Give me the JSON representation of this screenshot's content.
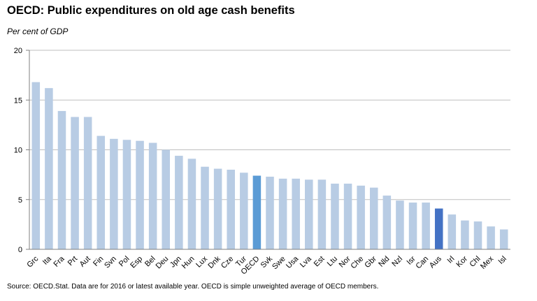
{
  "title": "OECD: Public expenditures on old age cash benefits",
  "subtitle": "Per cent of GDP",
  "source": "Source: OECD.Stat.  Data are for 2016 or latest available year.  OECD is simple unweighted average of OECD members.",
  "colors": {
    "bar": "#b8cce4",
    "oecd": "#5b9bd5",
    "aus": "#4472c4",
    "grid": "#bfbfbf",
    "axis": "#808080"
  },
  "chart_data": {
    "type": "bar",
    "title": "OECD: Public expenditures on old age cash benefits",
    "ylabel": "Per cent of GDP",
    "ylim": [
      0,
      20
    ],
    "yticks": [
      0,
      5,
      10,
      15,
      20
    ],
    "grid": true,
    "highlight": {
      "OECD": "oecd",
      "Aus": "aus"
    },
    "categories": [
      "Grc",
      "Ita",
      "Fra",
      "Prt",
      "Aut",
      "Fin",
      "Svn",
      "Pol",
      "Esp",
      "Bel",
      "Deu",
      "Jpn",
      "Hun",
      "Lux",
      "Dnk",
      "Cze",
      "Tur",
      "OECD",
      "Svk",
      "Swe",
      "Usa",
      "Lva",
      "Est",
      "Ltu",
      "Nor",
      "Che",
      "Gbr",
      "Nld",
      "Nzl",
      "Isr",
      "Can",
      "Aus",
      "Irl",
      "Kor",
      "Chl",
      "Mex",
      "Isl"
    ],
    "values": [
      16.8,
      16.2,
      13.9,
      13.3,
      13.3,
      11.4,
      11.1,
      11.0,
      10.9,
      10.7,
      10.0,
      9.4,
      9.1,
      8.3,
      8.1,
      8.0,
      7.7,
      7.4,
      7.3,
      7.1,
      7.1,
      7.0,
      7.0,
      6.6,
      6.6,
      6.4,
      6.2,
      5.4,
      4.9,
      4.7,
      4.7,
      4.1,
      3.5,
      2.9,
      2.8,
      2.3,
      2.0
    ]
  }
}
